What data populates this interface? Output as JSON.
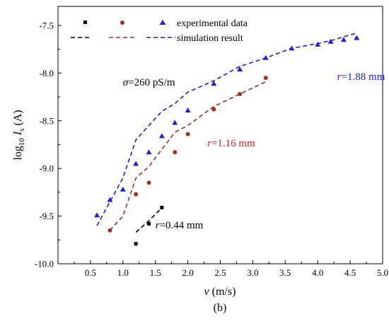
{
  "chart_data": {
    "type": "scatter",
    "subtitle": "(b)",
    "xlabel": {
      "italic": "v",
      "rest": " (m/s)"
    },
    "ylabel": {
      "pre": "log",
      "sub1": "10",
      "italic": " I",
      "sub2": "s",
      "post": " (A)"
    },
    "xlim": [
      0.0,
      5.0
    ],
    "ylim": [
      -10.0,
      -7.3
    ],
    "xticks": [
      "0.5",
      "1.0",
      "1.5",
      "2.0",
      "2.5",
      "3.0",
      "3.5",
      "4.0",
      "4.5",
      "5.0"
    ],
    "xtick_values": [
      0.5,
      1.0,
      1.5,
      2.0,
      2.5,
      3.0,
      3.5,
      4.0,
      4.5,
      5.0
    ],
    "yticks": [
      "-10.0",
      "-9.5",
      "-9.0",
      "-8.5",
      "-8.0",
      "-7.5"
    ],
    "ytick_values": [
      -10.0,
      -9.5,
      -9.0,
      -8.5,
      -8.0,
      -7.5
    ],
    "grid": false,
    "legend": {
      "placement": "top",
      "entries": [
        {
          "label": "experimental data",
          "kind": "markers"
        },
        {
          "label": "simulation result",
          "kind": "dashes"
        }
      ]
    },
    "annotations": [
      {
        "italic": "σ",
        "rest": "=260 pS/m",
        "color": "#000000",
        "x": 1.0,
        "y": -8.13
      },
      {
        "italic": "r",
        "rest": "=1.88 mm",
        "color": "#1f1fcf",
        "x": 4.3,
        "y": -8.07
      },
      {
        "italic": "r",
        "rest": "=1.16 mm",
        "color": "#cc2222",
        "x": 2.3,
        "y": -8.77
      },
      {
        "italic": "r",
        "rest": "=0.44 mm",
        "color": "#000000",
        "x": 1.5,
        "y": -9.63
      }
    ],
    "series": [
      {
        "marker": "triangle",
        "color": "#1f1fcf",
        "experimental": [
          [
            0.6,
            -9.49
          ],
          [
            0.8,
            -9.33
          ],
          [
            1.0,
            -9.22
          ],
          [
            1.2,
            -8.95
          ],
          [
            1.4,
            -8.83
          ],
          [
            1.6,
            -8.66
          ],
          [
            1.8,
            -8.52
          ],
          [
            2.0,
            -8.39
          ],
          [
            2.4,
            -8.11
          ],
          [
            2.8,
            -7.96
          ],
          [
            3.2,
            -7.84
          ],
          [
            3.6,
            -7.74
          ],
          [
            4.0,
            -7.7
          ],
          [
            4.2,
            -7.67
          ],
          [
            4.4,
            -7.65
          ],
          [
            4.6,
            -7.63
          ]
        ],
        "simulation": [
          [
            0.6,
            -9.6
          ],
          [
            0.8,
            -9.35
          ],
          [
            1.0,
            -9.1
          ],
          [
            1.2,
            -8.7
          ],
          [
            1.4,
            -8.55
          ],
          [
            1.6,
            -8.4
          ],
          [
            1.8,
            -8.32
          ],
          [
            2.0,
            -8.2
          ],
          [
            2.4,
            -8.08
          ],
          [
            2.8,
            -7.93
          ],
          [
            3.2,
            -7.84
          ],
          [
            3.6,
            -7.74
          ],
          [
            4.0,
            -7.69
          ],
          [
            4.2,
            -7.66
          ],
          [
            4.4,
            -7.62
          ],
          [
            4.6,
            -7.58
          ]
        ]
      },
      {
        "marker": "circle",
        "color": "#993322",
        "experimental": [
          [
            0.8,
            -9.65
          ],
          [
            1.2,
            -9.27
          ],
          [
            1.4,
            -9.15
          ],
          [
            1.8,
            -8.83
          ],
          [
            2.0,
            -8.64
          ],
          [
            2.4,
            -8.38
          ],
          [
            2.8,
            -8.22
          ],
          [
            3.2,
            -8.05
          ]
        ],
        "simulation": [
          [
            0.8,
            -9.65
          ],
          [
            1.0,
            -9.5
          ],
          [
            1.2,
            -9.1
          ],
          [
            1.4,
            -8.98
          ],
          [
            1.6,
            -8.8
          ],
          [
            1.8,
            -8.62
          ],
          [
            2.0,
            -8.55
          ],
          [
            2.4,
            -8.35
          ],
          [
            2.8,
            -8.22
          ],
          [
            3.2,
            -8.09
          ]
        ]
      },
      {
        "marker": "square",
        "color": "#000000",
        "experimental": [
          [
            1.2,
            -9.79
          ],
          [
            1.4,
            -9.58
          ],
          [
            1.6,
            -9.41
          ]
        ],
        "simulation": [
          [
            1.2,
            -9.67
          ],
          [
            1.4,
            -9.55
          ],
          [
            1.6,
            -9.41
          ]
        ]
      }
    ]
  }
}
